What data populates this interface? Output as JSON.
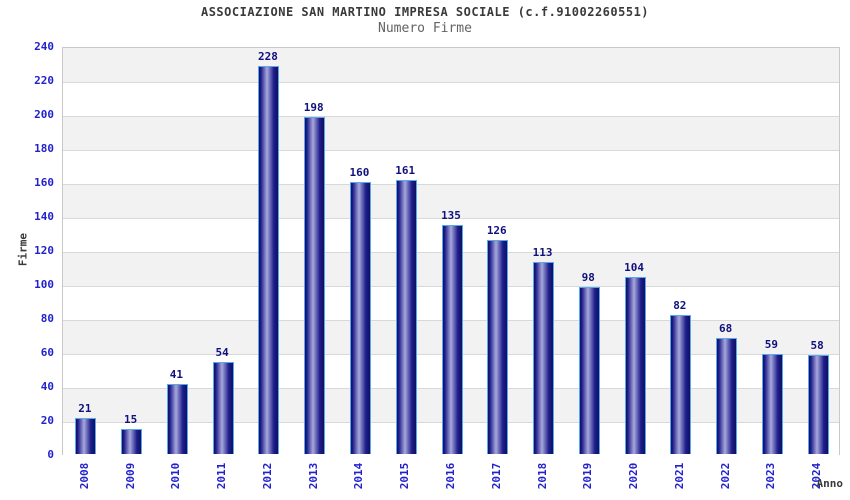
{
  "chart_data": {
    "type": "bar",
    "title": "ASSOCIAZIONE SAN MARTINO IMPRESA SOCIALE (c.f.91002260551)",
    "subtitle": "Numero Firme",
    "xlabel": "Anno",
    "ylabel": "Firme",
    "categories": [
      "2008",
      "2009",
      "2010",
      "2011",
      "2012",
      "2013",
      "2014",
      "2015",
      "2016",
      "2017",
      "2018",
      "2019",
      "2020",
      "2021",
      "2022",
      "2023",
      "2024"
    ],
    "values": [
      21,
      15,
      41,
      54,
      228,
      198,
      160,
      161,
      135,
      126,
      113,
      98,
      104,
      82,
      68,
      59,
      58
    ],
    "ylim": [
      0,
      240
    ],
    "ytick_step": 20,
    "grid": true,
    "legend": "none",
    "band_colors": [
      "#f2f2f2",
      "#ffffff"
    ],
    "colors": {
      "bar_border": "#58a8f0",
      "bar_edge_dark": "#10105f",
      "bar_body_dark": "#1e1e8c",
      "bar_body_light": "#a8a8dc",
      "tick_label": "#2222cc",
      "value_label": "#11117e",
      "title": "#3a3a3a",
      "subtitle": "#636363",
      "grid_line": "#d9d9d9",
      "plot_border": "#c9c9c9"
    }
  }
}
